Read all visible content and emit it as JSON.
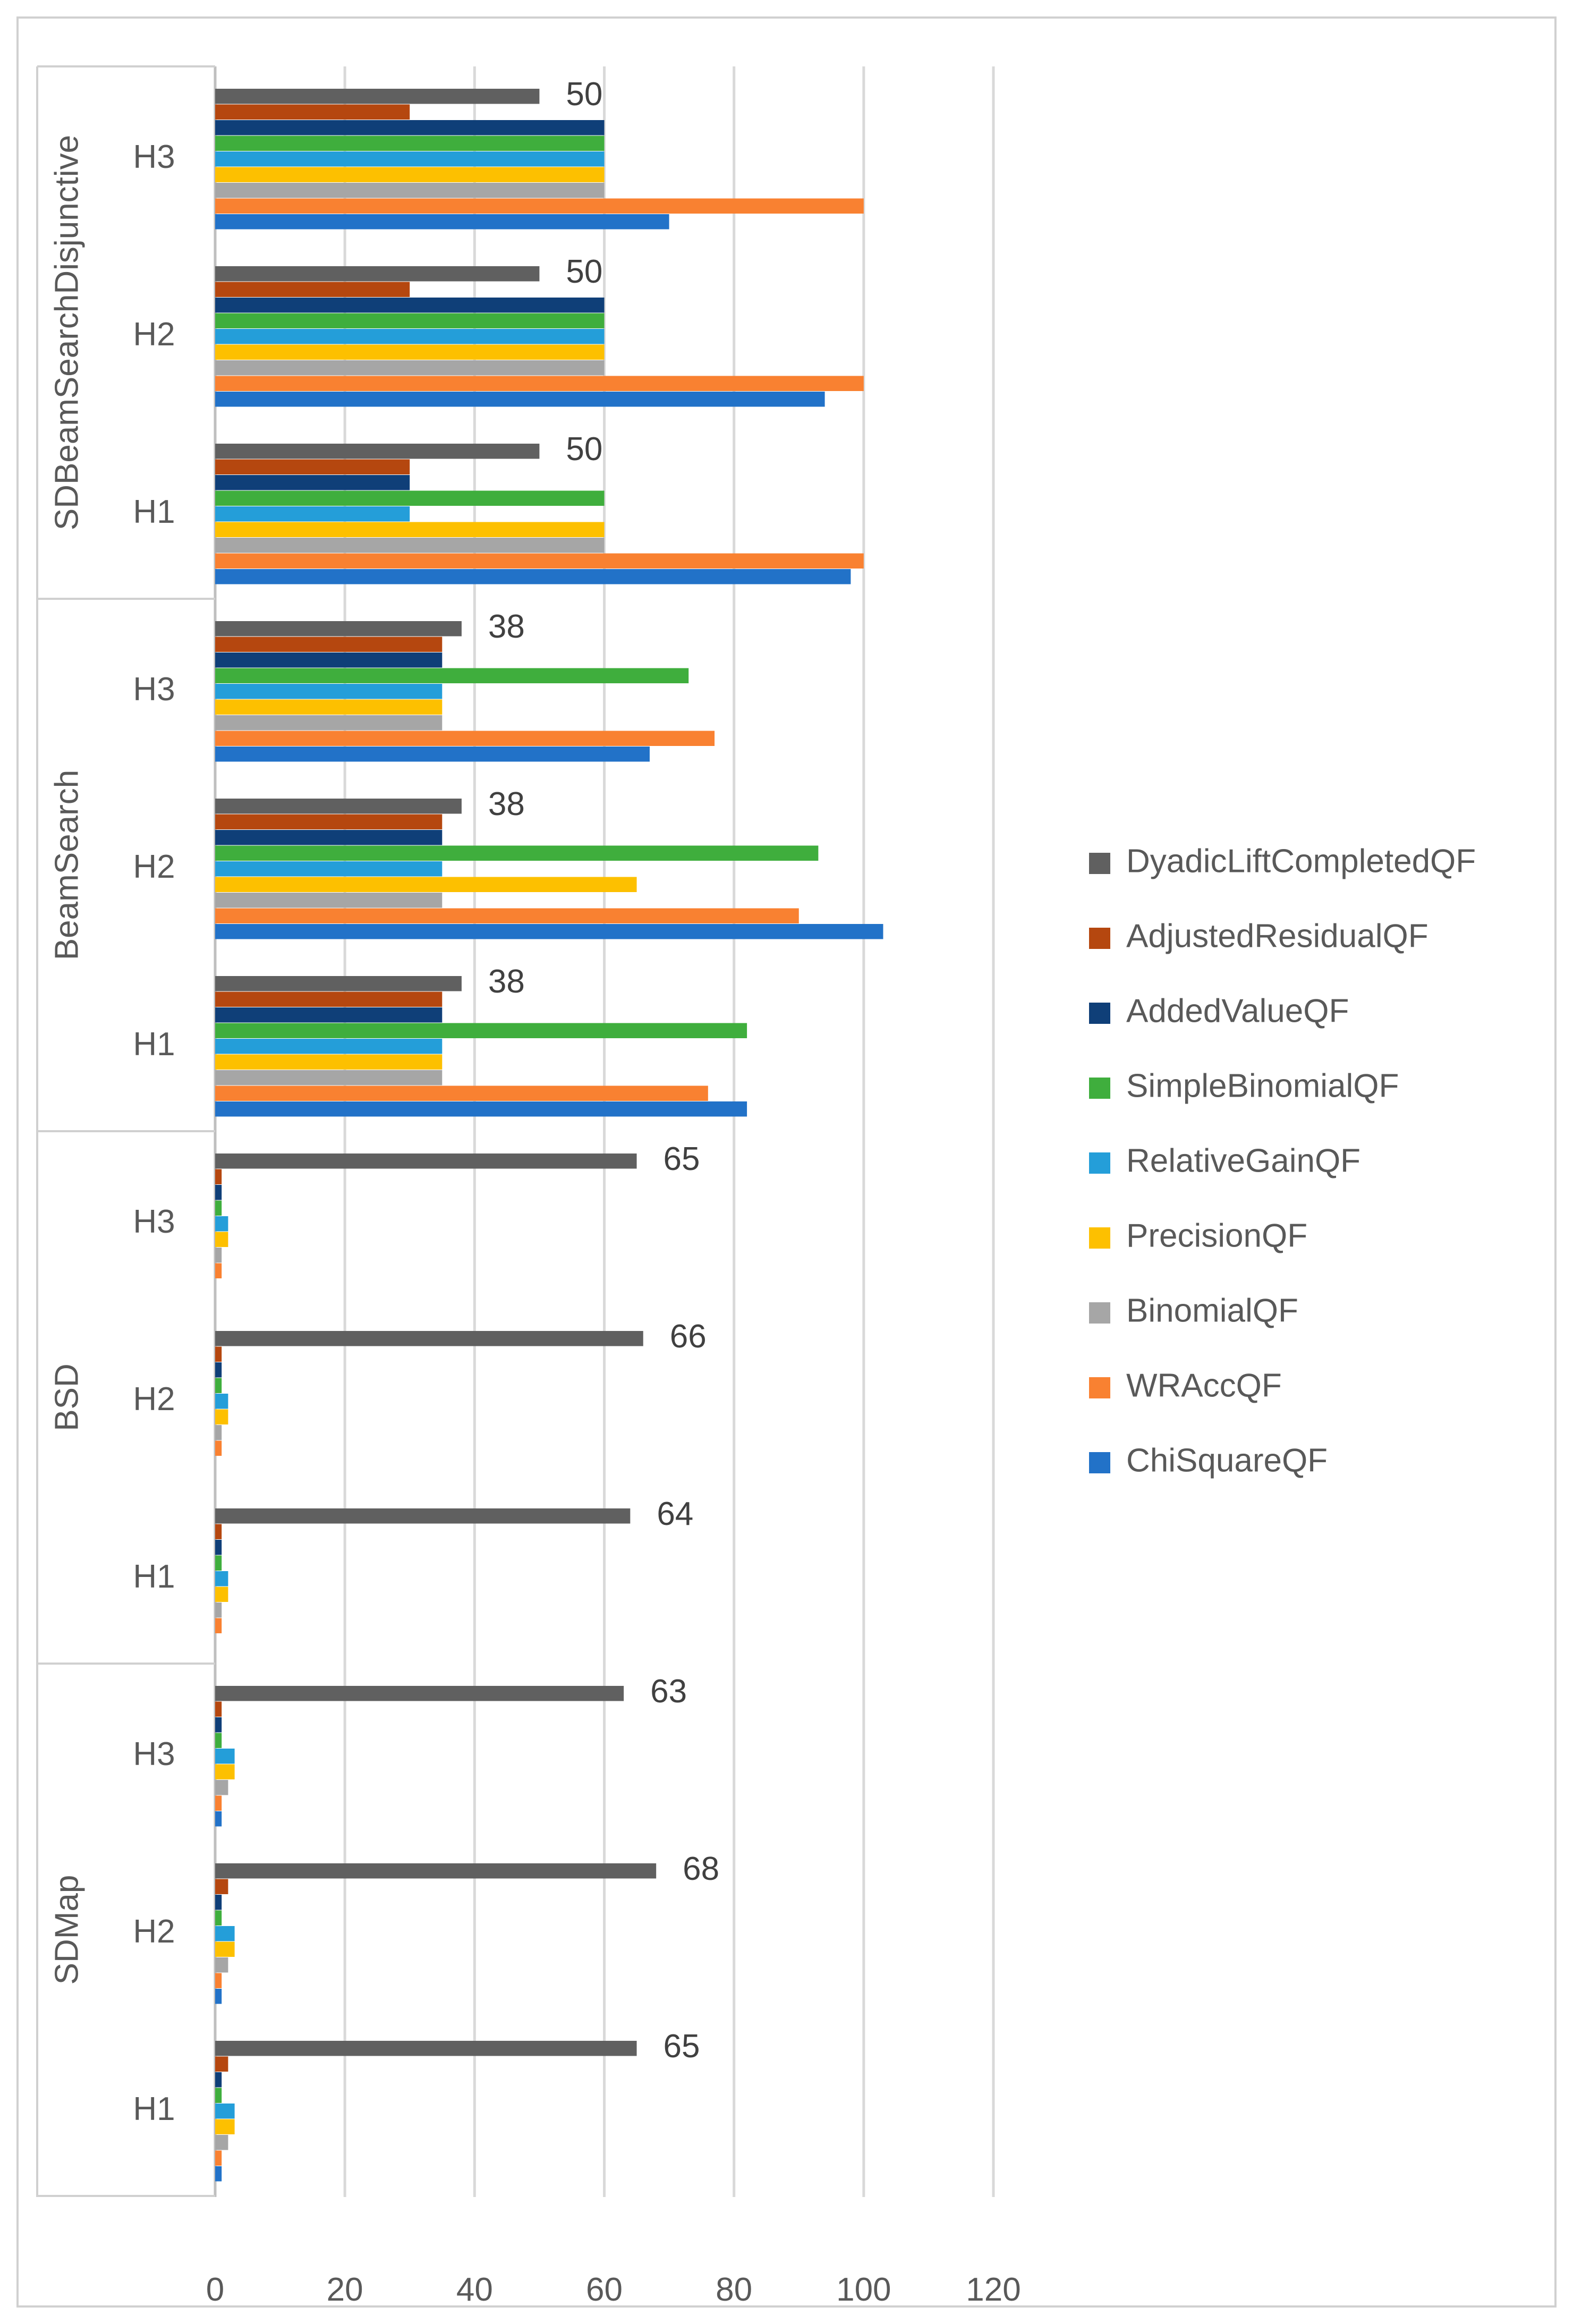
{
  "chart_data": {
    "type": "bar",
    "orientation": "horizontal",
    "title": "",
    "xlabel": "",
    "ylabel": "",
    "xlim": [
      0,
      120
    ],
    "xticks": [
      0,
      20,
      40,
      60,
      80,
      100,
      120
    ],
    "grid": true,
    "legend_position": "right",
    "groups": [
      {
        "name": "SDBeamSearchDisjunctive",
        "categories": [
          {
            "label": "H3",
            "annotation": "50",
            "values": {
              "DyadicLiftCompletedQF": 50,
              "AdjustedResidualQF": 30,
              "AddedValueQF": 60,
              "SimpleBinomialQF": 60,
              "RelativeGainQF": 60,
              "PrecisionQF": 60,
              "BinomialQF": 60,
              "WRAccQF": 100,
              "ChiSquareQF": 70
            }
          },
          {
            "label": "H2",
            "annotation": "50",
            "values": {
              "DyadicLiftCompletedQF": 50,
              "AdjustedResidualQF": 30,
              "AddedValueQF": 60,
              "SimpleBinomialQF": 60,
              "RelativeGainQF": 60,
              "PrecisionQF": 60,
              "BinomialQF": 60,
              "WRAccQF": 100,
              "ChiSquareQF": 94
            }
          },
          {
            "label": "H1",
            "annotation": "50",
            "values": {
              "DyadicLiftCompletedQF": 50,
              "AdjustedResidualQF": 30,
              "AddedValueQF": 30,
              "SimpleBinomialQF": 60,
              "RelativeGainQF": 30,
              "PrecisionQF": 60,
              "BinomialQF": 60,
              "WRAccQF": 100,
              "ChiSquareQF": 98
            }
          }
        ]
      },
      {
        "name": "BeamSearch",
        "categories": [
          {
            "label": "H3",
            "annotation": "38",
            "values": {
              "DyadicLiftCompletedQF": 38,
              "AdjustedResidualQF": 35,
              "AddedValueQF": 35,
              "SimpleBinomialQF": 73,
              "RelativeGainQF": 35,
              "PrecisionQF": 35,
              "BinomialQF": 35,
              "WRAccQF": 77,
              "ChiSquareQF": 67
            }
          },
          {
            "label": "H2",
            "annotation": "38",
            "values": {
              "DyadicLiftCompletedQF": 38,
              "AdjustedResidualQF": 35,
              "AddedValueQF": 35,
              "SimpleBinomialQF": 93,
              "RelativeGainQF": 35,
              "PrecisionQF": 65,
              "BinomialQF": 35,
              "WRAccQF": 90,
              "ChiSquareQF": 103
            }
          },
          {
            "label": "H1",
            "annotation": "38",
            "values": {
              "DyadicLiftCompletedQF": 38,
              "AdjustedResidualQF": 35,
              "AddedValueQF": 35,
              "SimpleBinomialQF": 82,
              "RelativeGainQF": 35,
              "PrecisionQF": 35,
              "BinomialQF": 35,
              "WRAccQF": 76,
              "ChiSquareQF": 82
            }
          }
        ]
      },
      {
        "name": "BSD",
        "categories": [
          {
            "label": "H3",
            "annotation": "65",
            "values": {
              "DyadicLiftCompletedQF": 65,
              "AdjustedResidualQF": 1,
              "AddedValueQF": 1,
              "SimpleBinomialQF": 1,
              "RelativeGainQF": 2,
              "PrecisionQF": 2,
              "BinomialQF": 1,
              "WRAccQF": 1,
              "ChiSquareQF": 0
            }
          },
          {
            "label": "H2",
            "annotation": "66",
            "values": {
              "DyadicLiftCompletedQF": 66,
              "AdjustedResidualQF": 1,
              "AddedValueQF": 1,
              "SimpleBinomialQF": 1,
              "RelativeGainQF": 2,
              "PrecisionQF": 2,
              "BinomialQF": 1,
              "WRAccQF": 1,
              "ChiSquareQF": 0
            }
          },
          {
            "label": "H1",
            "annotation": "64",
            "values": {
              "DyadicLiftCompletedQF": 64,
              "AdjustedResidualQF": 1,
              "AddedValueQF": 1,
              "SimpleBinomialQF": 1,
              "RelativeGainQF": 2,
              "PrecisionQF": 2,
              "BinomialQF": 1,
              "WRAccQF": 1,
              "ChiSquareQF": 0
            }
          }
        ]
      },
      {
        "name": "SDMap",
        "categories": [
          {
            "label": "H3",
            "annotation": "63",
            "values": {
              "DyadicLiftCompletedQF": 63,
              "AdjustedResidualQF": 1,
              "AddedValueQF": 1,
              "SimpleBinomialQF": 1,
              "RelativeGainQF": 3,
              "PrecisionQF": 3,
              "BinomialQF": 2,
              "WRAccQF": 1,
              "ChiSquareQF": 1
            }
          },
          {
            "label": "H2",
            "annotation": "68",
            "values": {
              "DyadicLiftCompletedQF": 68,
              "AdjustedResidualQF": 2,
              "AddedValueQF": 1,
              "SimpleBinomialQF": 1,
              "RelativeGainQF": 3,
              "PrecisionQF": 3,
              "BinomialQF": 2,
              "WRAccQF": 1,
              "ChiSquareQF": 1
            }
          },
          {
            "label": "H1",
            "annotation": "65",
            "values": {
              "DyadicLiftCompletedQF": 65,
              "AdjustedResidualQF": 2,
              "AddedValueQF": 1,
              "SimpleBinomialQF": 1,
              "RelativeGainQF": 3,
              "PrecisionQF": 3,
              "BinomialQF": 2,
              "WRAccQF": 1,
              "ChiSquareQF": 1
            }
          }
        ]
      }
    ],
    "series": [
      {
        "name": "DyadicLiftCompletedQF",
        "color": "#606060"
      },
      {
        "name": "AdjustedResidualQF",
        "color": "#B5470F"
      },
      {
        "name": "AddedValueQF",
        "color": "#0F3F78"
      },
      {
        "name": "SimpleBinomialQF",
        "color": "#3FAE3D"
      },
      {
        "name": "RelativeGainQF",
        "color": "#249ED9"
      },
      {
        "name": "PrecisionQF",
        "color": "#FDC000"
      },
      {
        "name": "BinomialQF",
        "color": "#A6A6A6"
      },
      {
        "name": "WRAccQF",
        "color": "#F98131"
      },
      {
        "name": "ChiSquareQF",
        "color": "#2272C8"
      }
    ]
  }
}
